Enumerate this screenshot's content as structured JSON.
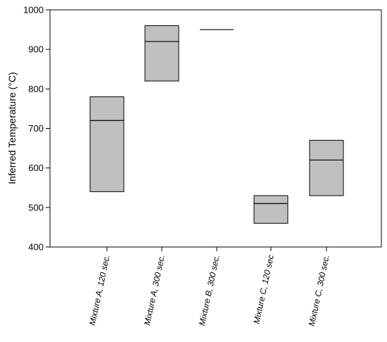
{
  "chart_data": {
    "type": "box",
    "title": "",
    "xlabel": "",
    "ylabel": "Inferred Temperature (°C)",
    "ylim": [
      400,
      1000
    ],
    "yticks": [
      400,
      500,
      600,
      700,
      800,
      900,
      1000
    ],
    "ytick_labels": [
      "400",
      "500",
      "600",
      "700",
      "800",
      "900",
      "1000"
    ],
    "grid": false,
    "legend": "none",
    "box_fill": "#c0c0c0",
    "line_color": "#000000",
    "categories": [
      "Mixture A, 120 sec.",
      "Mixture A, 300 sec.",
      "Mixture B, 300 sec.",
      "Mixture C, 120 sec",
      "Mixture C, 300 sec."
    ],
    "boxes": [
      {
        "low": 540,
        "median": 720,
        "high": 780
      },
      {
        "low": 820,
        "median": 920,
        "high": 960
      },
      {
        "low": 950,
        "median": 950,
        "high": 950
      },
      {
        "low": 460,
        "median": 510,
        "high": 530
      },
      {
        "low": 530,
        "median": 620,
        "high": 670
      }
    ]
  }
}
